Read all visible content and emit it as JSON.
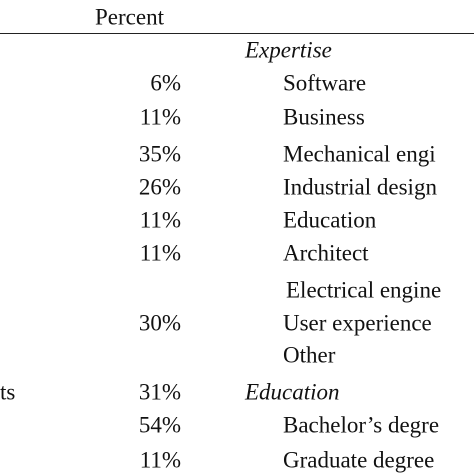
{
  "header": {
    "percent": "Percent"
  },
  "table": {
    "rows": [
      {
        "section": "Expertise"
      },
      {
        "percent": "6%",
        "label": "Software"
      },
      {
        "percent": "11%",
        "label": "Business"
      },
      {
        "percent": "35%",
        "label": "Mechanical engi"
      },
      {
        "percent": "26%",
        "label": "Industrial design"
      },
      {
        "percent": "11%",
        "label": "Education"
      },
      {
        "percent": "11%",
        "label": "Architect"
      },
      {
        "label": "Electrical engine"
      },
      {
        "percent": "30%",
        "label": "User experience"
      },
      {
        "label": "Other"
      },
      {
        "stub": "ts",
        "percent": "31%",
        "section": "Education"
      },
      {
        "percent": "54%",
        "label": "Bachelor’s degre"
      },
      {
        "percent": "11%",
        "label": "Graduate degree"
      }
    ]
  }
}
